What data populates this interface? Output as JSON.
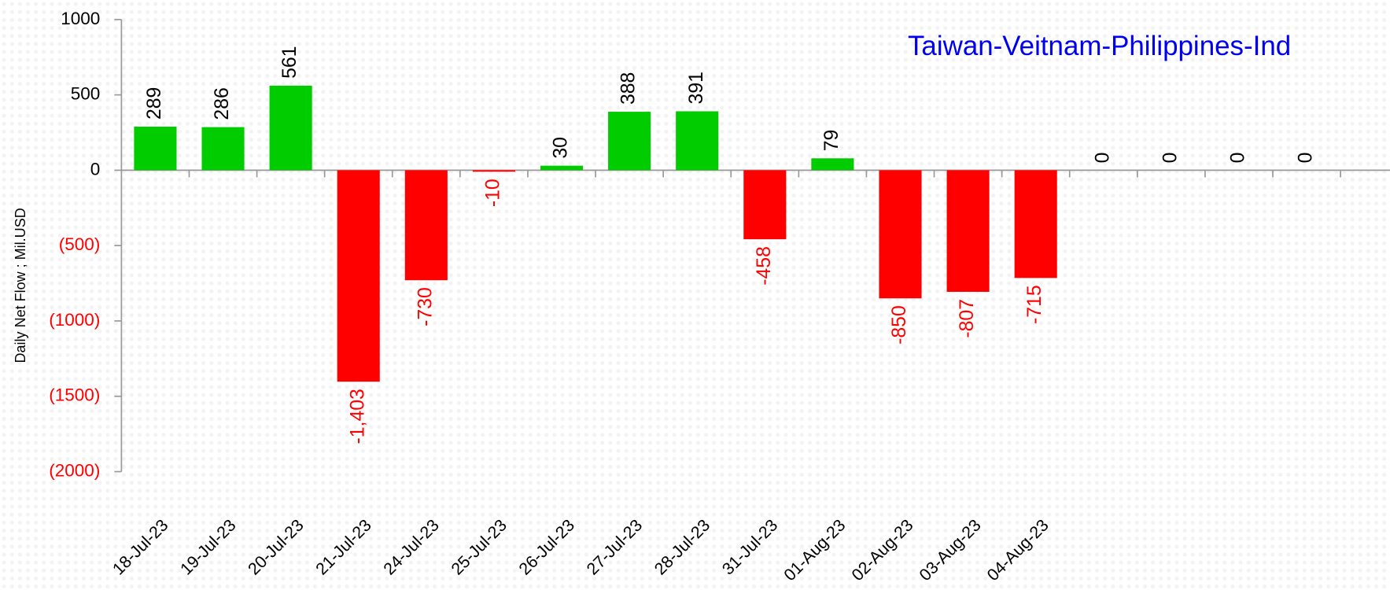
{
  "chart_data": {
    "type": "bar",
    "title": "Taiwan-Veitnam-Philippines-Ind",
    "y_label": "Daily Net Flow ; Mil.USD",
    "categories": [
      "18-Jul-23",
      "19-Jul-23",
      "20-Jul-23",
      "21-Jul-23",
      "24-Jul-23",
      "25-Jul-23",
      "26-Jul-23",
      "27-Jul-23",
      "28-Jul-23",
      "31-Jul-23",
      "01-Aug-23",
      "02-Aug-23",
      "03-Aug-23",
      "04-Aug-23",
      null,
      null,
      null,
      null
    ],
    "values": [
      289,
      286,
      561,
      -1403,
      -730,
      -10,
      30,
      388,
      391,
      -458,
      79,
      -850,
      -807,
      -715,
      0,
      0,
      0,
      0
    ],
    "value_labels": [
      "289",
      "286",
      "561",
      "-1,403",
      "-730",
      "-10",
      "30",
      "388",
      "391",
      "-458",
      "79",
      "-850",
      "-807",
      "-715",
      "0",
      "0",
      "0",
      "0"
    ],
    "positive_color": "#00cc00",
    "negative_color": "#ff0000",
    "ylim": [
      -2000,
      1000
    ],
    "yticks": [
      1000,
      500,
      0,
      {
        "value": -500,
        "label": "(500)"
      },
      {
        "value": -1000,
        "label": "(1000)"
      },
      {
        "value": -1500,
        "label": "(1500)"
      },
      {
        "value": -2000,
        "label": "(2000)"
      }
    ]
  }
}
